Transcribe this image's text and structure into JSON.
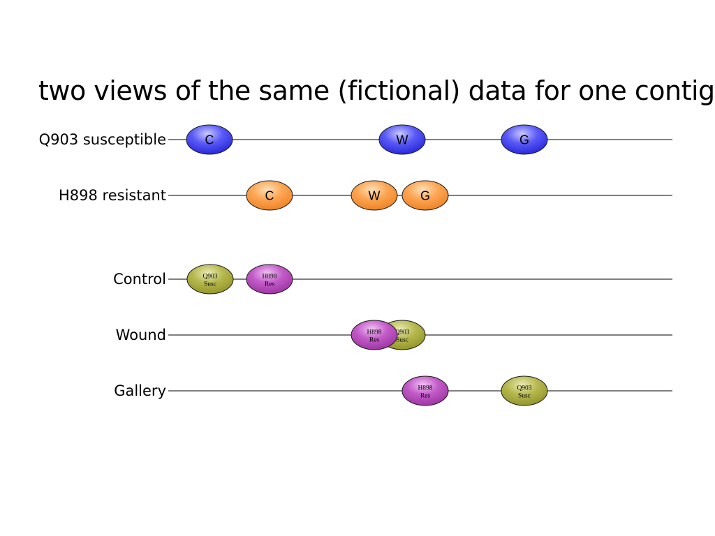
{
  "title": "two views of the same (fictional) data for one contig",
  "colors": {
    "susceptible": "#3a3aee",
    "resistant": "#f58a2a",
    "susc_sample": "#a6a838",
    "res_sample": "#b244b8",
    "line": "#333333"
  },
  "rows": [
    {
      "label": "Q903 susceptible",
      "markers": [
        {
          "text": "C",
          "style": "susceptible"
        },
        {
          "text": "W",
          "style": "susceptible"
        },
        {
          "text": "G",
          "style": "susceptible"
        }
      ]
    },
    {
      "label": "H898 resistant",
      "markers": [
        {
          "text": "C",
          "style": "resistant"
        },
        {
          "text": "W",
          "style": "resistant"
        },
        {
          "text": "G",
          "style": "resistant"
        }
      ]
    },
    {
      "label": "Control",
      "markers": [
        {
          "line1": "Q903",
          "line2": "Susc",
          "style": "susc_sample"
        },
        {
          "line1": "H898",
          "line2": "Res",
          "style": "res_sample"
        }
      ]
    },
    {
      "label": "Wound",
      "markers": [
        {
          "line1": "Q903",
          "line2": "Susc",
          "style": "susc_sample"
        },
        {
          "line1": "H898",
          "line2": "Res",
          "style": "res_sample"
        }
      ]
    },
    {
      "label": "Gallery",
      "markers": [
        {
          "line1": "H898",
          "line2": "Res",
          "style": "res_sample"
        },
        {
          "line1": "Q903",
          "line2": "Susc",
          "style": "susc_sample"
        }
      ]
    }
  ]
}
